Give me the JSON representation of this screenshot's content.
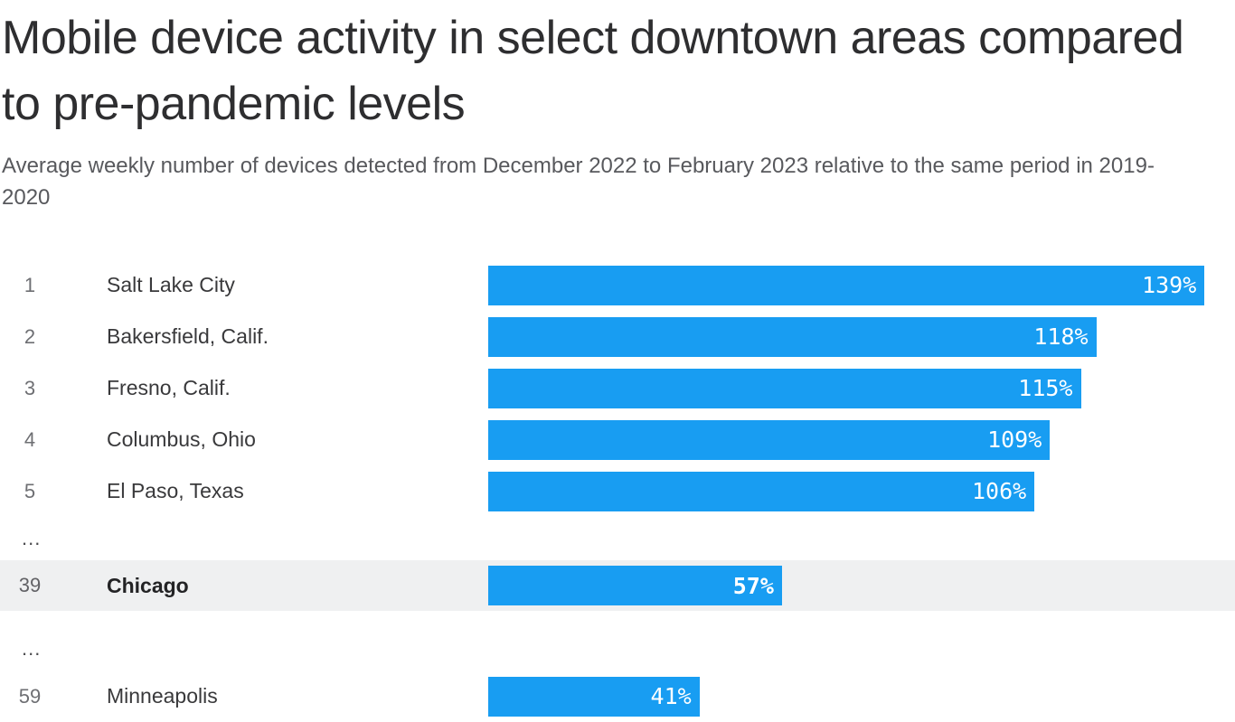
{
  "title": "Mobile device activity in select downtown areas compared to pre-pandemic levels",
  "subtitle": "Average weekly number of devices detected from December 2022 to February 2023 relative to the same period in 2019-2020",
  "chart_data": {
    "type": "bar",
    "orientation": "horizontal",
    "title": "Mobile device activity in select downtown areas compared to pre-pandemic levels",
    "subtitle": "Average weekly number of devices detected from December 2022 to February 2023 relative to the same period in 2019-2020",
    "unit": "%",
    "xlim": [
      0,
      145
    ],
    "grid": false,
    "legend": false,
    "bar_color": "#189df2",
    "value_label_color": "#ffffff",
    "highlight_row_bg": "#eff0f1",
    "highlighted_category": "Chicago",
    "omitted_rows_marker": "...",
    "categories": [
      "Salt Lake City",
      "Bakersfield, Calif.",
      "Fresno, Calif.",
      "Columbus, Ohio",
      "El Paso, Texas",
      "Chicago",
      "Minneapolis"
    ],
    "values": [
      139,
      118,
      115,
      109,
      106,
      57,
      41
    ],
    "ranks": [
      1,
      2,
      3,
      4,
      5,
      39,
      59
    ],
    "rows": [
      {
        "rank": "1",
        "city": "Salt Lake City",
        "value": 139,
        "value_label": "139%",
        "highlight": false
      },
      {
        "rank": "2",
        "city": "Bakersfield, Calif.",
        "value": 118,
        "value_label": "118%",
        "highlight": false
      },
      {
        "rank": "3",
        "city": "Fresno, Calif.",
        "value": 115,
        "value_label": "115%",
        "highlight": false
      },
      {
        "rank": "4",
        "city": "Columbus, Ohio",
        "value": 109,
        "value_label": "109%",
        "highlight": false
      },
      {
        "rank": "5",
        "city": "El Paso, Texas",
        "value": 106,
        "value_label": "106%",
        "highlight": false
      },
      {
        "label": "..."
      },
      {
        "rank": "39",
        "city": "Chicago",
        "value": 57,
        "value_label": "57%",
        "highlight": true
      },
      {
        "label": "..."
      },
      {
        "rank": "59",
        "city": "Minneapolis",
        "value": 41,
        "value_label": "41%",
        "highlight": false
      }
    ]
  }
}
